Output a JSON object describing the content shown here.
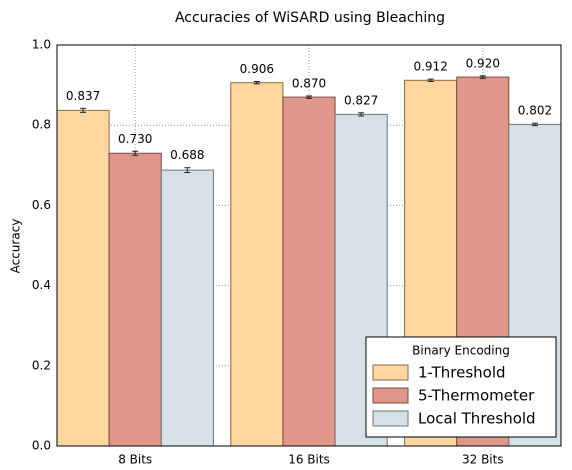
{
  "chart_data": {
    "type": "bar",
    "title": "Accuracies of WiSARD using Bleaching",
    "y_label": "Accuracy",
    "categories": [
      "8 Bits",
      "16 Bits",
      "32 Bits"
    ],
    "series": [
      {
        "name": "1-Threshold",
        "color": "#fed6a0",
        "edge": "#8a6a40",
        "values": [
          0.837,
          0.906,
          0.912
        ],
        "value_labels": [
          "0.837",
          "0.906",
          "0.912"
        ],
        "errors": [
          0.005,
          0.003,
          0.003
        ]
      },
      {
        "name": "5-Thermometer",
        "color": "#df978b",
        "edge": "#7a4a42",
        "values": [
          0.73,
          0.87,
          0.92
        ],
        "value_labels": [
          "0.730",
          "0.870",
          "0.920"
        ],
        "errors": [
          0.005,
          0.003,
          0.003
        ]
      },
      {
        "name": "Local Threshold",
        "color": "#d5e1e6",
        "edge": "#6a7478",
        "values": [
          0.688,
          0.827,
          0.802
        ],
        "value_labels": [
          "0.688",
          "0.827",
          "0.802"
        ],
        "errors": [
          0.006,
          0.004,
          0.003
        ]
      }
    ],
    "ylim": [
      0,
      1
    ],
    "yticks": [
      {
        "value": 0,
        "label": "0.0"
      },
      {
        "value": 0.2,
        "label": "0.2"
      },
      {
        "value": 0.4,
        "label": "0.4"
      },
      {
        "value": 0.6,
        "label": "0.6"
      },
      {
        "value": 0.8,
        "label": "0.8"
      },
      {
        "value": 1,
        "label": "1.0"
      }
    ],
    "grid": true,
    "legend_title": "Binary Encoding",
    "legend_position": "lower right"
  }
}
